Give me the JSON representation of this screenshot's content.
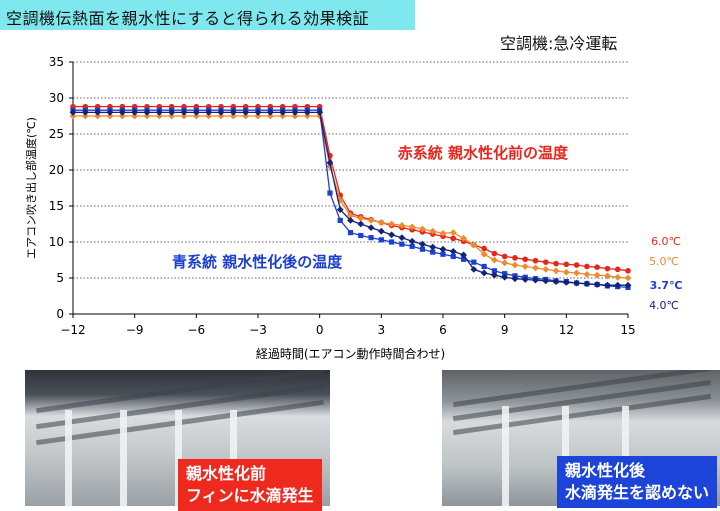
{
  "title": "空調機伝熱面を親水性にすると得られる効果検証",
  "subtitle": "空調機:急冷運転",
  "chart_data": {
    "type": "line",
    "xlabel": "経過時間(エアコン動作時間合わせ)",
    "ylabel": "エアコン吹き出し部温度(℃)",
    "xlim": [
      -12,
      15
    ],
    "ylim": [
      0,
      35
    ],
    "xticks": [
      -12,
      -9,
      -6,
      -3,
      0,
      3,
      6,
      9,
      12,
      15
    ],
    "yticks": [
      0,
      5,
      10,
      15,
      20,
      25,
      30,
      35
    ],
    "grid": "horizontal dotted",
    "annotations": [
      {
        "text": "赤系統 親水性化前の温度",
        "color": "#e8251c"
      },
      {
        "text": "青系統 親水性化後の温度",
        "color": "#1c3fd0"
      }
    ],
    "series": [
      {
        "color": "#e8251c",
        "marker": "circle",
        "end_label": "6.0℃",
        "points": [
          [
            -12,
            28.8
          ],
          [
            -11.4,
            28.8
          ],
          [
            -10.8,
            28.8
          ],
          [
            -10.2,
            28.8
          ],
          [
            -9.6,
            28.8
          ],
          [
            -9,
            28.8
          ],
          [
            -8.4,
            28.8
          ],
          [
            -7.8,
            28.8
          ],
          [
            -7.2,
            28.8
          ],
          [
            -6.6,
            28.8
          ],
          [
            -6,
            28.8
          ],
          [
            -5.4,
            28.8
          ],
          [
            -4.8,
            28.8
          ],
          [
            -4.2,
            28.8
          ],
          [
            -3.6,
            28.8
          ],
          [
            -3,
            28.8
          ],
          [
            -2.4,
            28.8
          ],
          [
            -1.8,
            28.8
          ],
          [
            -1.2,
            28.8
          ],
          [
            -0.6,
            28.8
          ],
          [
            0,
            28.8
          ],
          [
            0.5,
            22
          ],
          [
            1,
            16.5
          ],
          [
            1.5,
            14
          ],
          [
            2,
            13.5
          ],
          [
            2.5,
            13.1
          ],
          [
            3,
            12.7
          ],
          [
            3.5,
            12.3
          ],
          [
            4,
            12
          ],
          [
            4.5,
            11.7
          ],
          [
            5,
            11.4
          ],
          [
            5.5,
            11.1
          ],
          [
            6,
            10.8
          ],
          [
            6.5,
            10.5
          ],
          [
            7,
            10.1
          ],
          [
            7.5,
            9.6
          ],
          [
            8,
            9.1
          ],
          [
            8.5,
            8.4
          ],
          [
            9,
            8
          ],
          [
            9.5,
            7.8
          ],
          [
            10,
            7.6
          ],
          [
            10.5,
            7.4
          ],
          [
            11,
            7.2
          ],
          [
            11.5,
            7
          ],
          [
            12,
            6.9
          ],
          [
            12.5,
            6.8
          ],
          [
            13,
            6.6
          ],
          [
            13.5,
            6.5
          ],
          [
            14,
            6.3
          ],
          [
            14.5,
            6.2
          ],
          [
            15,
            6
          ]
        ]
      },
      {
        "color": "#f08a2c",
        "marker": "diamond",
        "end_label": "5.0℃",
        "points": [
          [
            -12,
            27.5
          ],
          [
            -11.4,
            27.5
          ],
          [
            -10.8,
            27.5
          ],
          [
            -10.2,
            27.5
          ],
          [
            -9.6,
            27.5
          ],
          [
            -9,
            27.5
          ],
          [
            -8.4,
            27.5
          ],
          [
            -7.8,
            27.5
          ],
          [
            -7.2,
            27.5
          ],
          [
            -6.6,
            27.5
          ],
          [
            -6,
            27.5
          ],
          [
            -5.4,
            27.5
          ],
          [
            -4.8,
            27.5
          ],
          [
            -4.2,
            27.5
          ],
          [
            -3.6,
            27.5
          ],
          [
            -3,
            27.5
          ],
          [
            -2.4,
            27.5
          ],
          [
            -1.8,
            27.5
          ],
          [
            -1.2,
            27.5
          ],
          [
            -0.6,
            27.5
          ],
          [
            0,
            27.5
          ],
          [
            0.5,
            20.5
          ],
          [
            1,
            15.8
          ],
          [
            1.5,
            13.7
          ],
          [
            2,
            13.3
          ],
          [
            2.5,
            13
          ],
          [
            3,
            12.7
          ],
          [
            3.5,
            12.5
          ],
          [
            4,
            12.3
          ],
          [
            4.5,
            12.1
          ],
          [
            5,
            11.8
          ],
          [
            5.5,
            11.5
          ],
          [
            6,
            11.2
          ],
          [
            6.5,
            11.3
          ],
          [
            7,
            10.5
          ],
          [
            7.5,
            9.6
          ],
          [
            8,
            8.3
          ],
          [
            8.5,
            7.5
          ],
          [
            9,
            7.1
          ],
          [
            9.5,
            6.8
          ],
          [
            10,
            6.6
          ],
          [
            10.5,
            6.4
          ],
          [
            11,
            6.2
          ],
          [
            11.5,
            6
          ],
          [
            12,
            5.8
          ],
          [
            12.5,
            5.7
          ],
          [
            13,
            5.5
          ],
          [
            13.5,
            5.4
          ],
          [
            14,
            5.3
          ],
          [
            14.5,
            5.1
          ],
          [
            15,
            5
          ]
        ]
      },
      {
        "color": "#1c3fd0",
        "marker": "square",
        "end_label": "3.7℃",
        "points": [
          [
            -12,
            28.3
          ],
          [
            -11.4,
            28.3
          ],
          [
            -10.8,
            28.3
          ],
          [
            -10.2,
            28.3
          ],
          [
            -9.6,
            28.3
          ],
          [
            -9,
            28.3
          ],
          [
            -8.4,
            28.3
          ],
          [
            -7.8,
            28.3
          ],
          [
            -7.2,
            28.3
          ],
          [
            -6.6,
            28.3
          ],
          [
            -6,
            28.3
          ],
          [
            -5.4,
            28.3
          ],
          [
            -4.8,
            28.3
          ],
          [
            -4.2,
            28.3
          ],
          [
            -3.6,
            28.3
          ],
          [
            -3,
            28.3
          ],
          [
            -2.4,
            28.3
          ],
          [
            -1.8,
            28.3
          ],
          [
            -1.2,
            28.3
          ],
          [
            -0.6,
            28.3
          ],
          [
            0,
            28.3
          ],
          [
            0.5,
            16.8
          ],
          [
            1,
            13
          ],
          [
            1.5,
            11.3
          ],
          [
            2,
            10.9
          ],
          [
            2.5,
            10.6
          ],
          [
            3,
            10.3
          ],
          [
            3.5,
            10
          ],
          [
            4,
            9.7
          ],
          [
            4.5,
            9.4
          ],
          [
            5,
            9
          ],
          [
            5.5,
            8.6
          ],
          [
            6,
            8.3
          ],
          [
            6.5,
            8
          ],
          [
            7,
            7.6
          ],
          [
            7.5,
            7.2
          ],
          [
            8,
            6.6
          ],
          [
            8.5,
            6
          ],
          [
            9,
            5.6
          ],
          [
            9.5,
            5.3
          ],
          [
            10,
            5.1
          ],
          [
            10.5,
            4.9
          ],
          [
            11,
            4.8
          ],
          [
            11.5,
            4.6
          ],
          [
            12,
            4.5
          ],
          [
            12.5,
            4.3
          ],
          [
            13,
            4.2
          ],
          [
            13.5,
            4.1
          ],
          [
            14,
            3.9
          ],
          [
            14.5,
            3.8
          ],
          [
            15,
            3.7
          ]
        ]
      },
      {
        "color": "#14237a",
        "marker": "diamond",
        "end_label": "4.0℃",
        "points": [
          [
            -12,
            28
          ],
          [
            -11.4,
            28
          ],
          [
            -10.8,
            28
          ],
          [
            -10.2,
            28
          ],
          [
            -9.6,
            28
          ],
          [
            -9,
            28
          ],
          [
            -8.4,
            28
          ],
          [
            -7.8,
            28
          ],
          [
            -7.2,
            28
          ],
          [
            -6.6,
            28
          ],
          [
            -6,
            28
          ],
          [
            -5.4,
            28
          ],
          [
            -4.8,
            28
          ],
          [
            -4.2,
            28
          ],
          [
            -3.6,
            28
          ],
          [
            -3,
            28
          ],
          [
            -2.4,
            28
          ],
          [
            -1.8,
            28
          ],
          [
            -1.2,
            28
          ],
          [
            -0.6,
            28
          ],
          [
            0,
            28
          ],
          [
            0.5,
            21
          ],
          [
            1,
            14.5
          ],
          [
            1.5,
            13
          ],
          [
            2,
            12.5
          ],
          [
            2.5,
            12
          ],
          [
            3,
            11.5
          ],
          [
            3.5,
            11
          ],
          [
            4,
            10.6
          ],
          [
            4.5,
            10.1
          ],
          [
            5,
            9.7
          ],
          [
            5.5,
            9.3
          ],
          [
            6,
            9
          ],
          [
            6.5,
            8.7
          ],
          [
            7,
            8.2
          ],
          [
            7.5,
            6.2
          ],
          [
            8,
            5.7
          ],
          [
            8.5,
            5.4
          ],
          [
            9,
            5.1
          ],
          [
            9.5,
            4.9
          ],
          [
            10,
            4.8
          ],
          [
            10.5,
            4.7
          ],
          [
            11,
            4.6
          ],
          [
            11.5,
            4.5
          ],
          [
            12,
            4.4
          ],
          [
            12.5,
            4.3
          ],
          [
            13,
            4.2
          ],
          [
            13.5,
            4.1
          ],
          [
            14,
            4
          ],
          [
            14.5,
            4
          ],
          [
            15,
            4
          ]
        ]
      }
    ]
  },
  "photos": {
    "before_caption": "親水性化前\nフィンに水滴発生",
    "after_caption": "親水性化後\n水滴発生を認めない"
  }
}
